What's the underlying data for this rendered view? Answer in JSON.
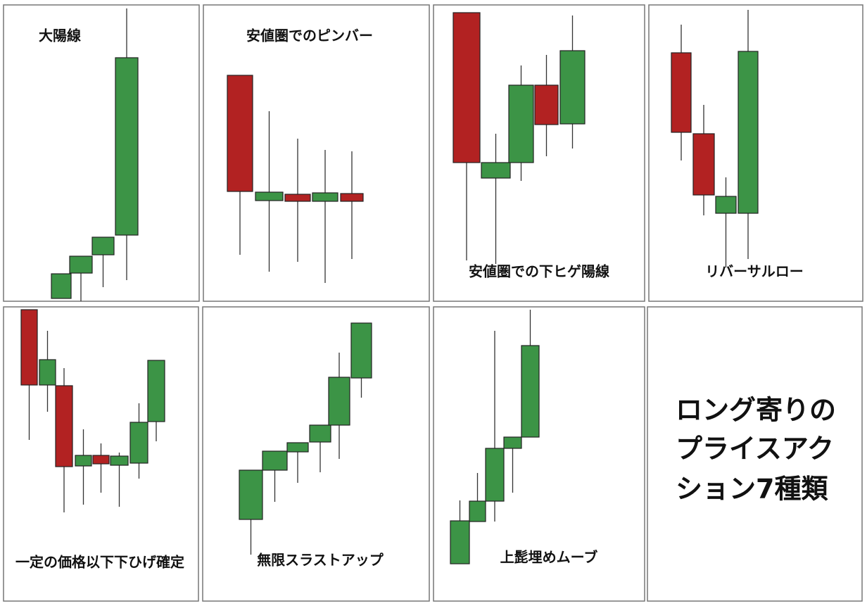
{
  "panels": [
    {
      "label": "大陽線"
    },
    {
      "label": "安値圏でのピンバー"
    },
    {
      "label": "安値圏での下ヒゲ陽線"
    },
    {
      "label": "リバーサルロー"
    },
    {
      "label": "一定の価格以下下ひげ確定"
    },
    {
      "label": "無限スラストアップ"
    },
    {
      "label": "上髭埋めムーブ"
    }
  ],
  "summary": {
    "lines": [
      "ロング寄りの",
      "プライスアク",
      "ション7種類"
    ]
  }
}
